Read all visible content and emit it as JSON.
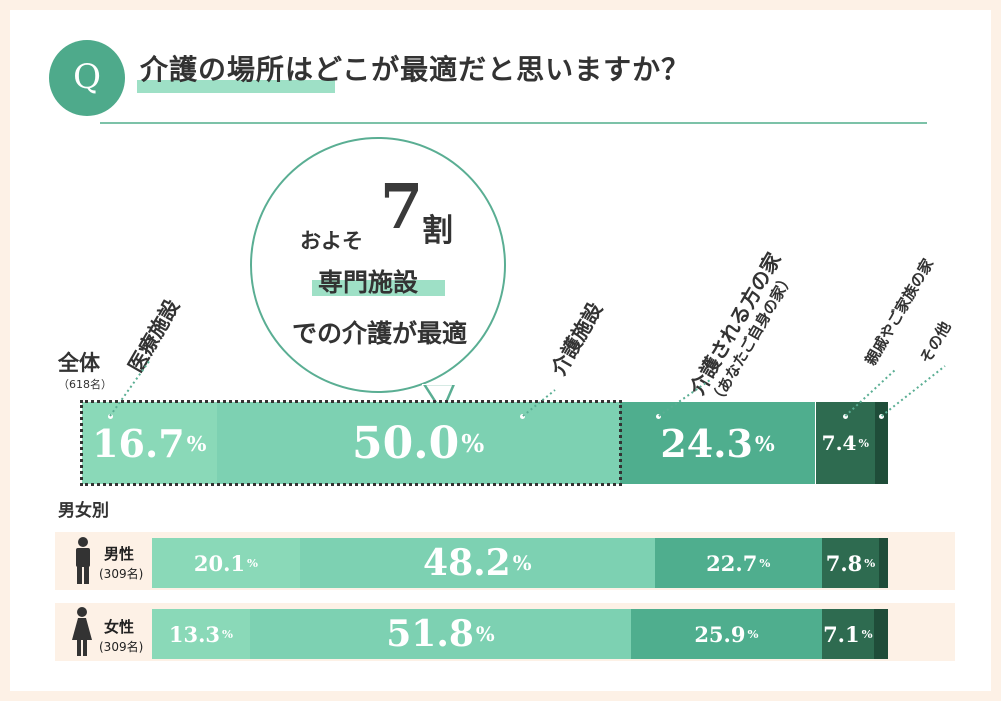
{
  "title": "介護の場所はどこが最適だと思いますか？",
  "q_badge": "Q",
  "bubble": {
    "approx": "およそ",
    "number": "7",
    "unit": "割",
    "line2": "専門施設",
    "line3": "での介護が最適"
  },
  "colors": [
    "#8ad9b8",
    "#7dd1b2",
    "#4fae8e",
    "#2e6b50",
    "#1f4d39"
  ],
  "chart_data": {
    "type": "bar",
    "orientation": "horizontal",
    "stacked": true,
    "normalized": true,
    "categories": [
      "医療施設",
      "介護施設",
      "介護される方の家（あなたご自身の家）",
      "親戚やご家族の家",
      "その他"
    ],
    "category_labels": [
      {
        "main": "医療施設",
        "sub": ""
      },
      {
        "main": "介護施設",
        "sub": ""
      },
      {
        "main": "介護される方の家",
        "sub": "（あなたご自身の家）"
      },
      {
        "main": "親戚やご家族の家",
        "sub": ""
      },
      {
        "main": "その他",
        "sub": ""
      }
    ],
    "unit": "%",
    "section_label": "男女別",
    "rows": [
      {
        "key": "all",
        "label": "全体",
        "n": "（618名）",
        "values": [
          16.7,
          50.0,
          24.3,
          7.4,
          1.6
        ],
        "shown": [
          "16.7",
          "50.0",
          "24.3",
          "7.4",
          ""
        ]
      },
      {
        "key": "male",
        "label": "男性",
        "n": "(309名)",
        "values": [
          20.1,
          48.2,
          22.7,
          7.8,
          1.2
        ],
        "shown": [
          "20.1",
          "48.2",
          "22.7",
          "7.8",
          ""
        ]
      },
      {
        "key": "female",
        "label": "女性",
        "n": "(309名)",
        "values": [
          13.3,
          51.8,
          25.9,
          7.1,
          1.9
        ],
        "shown": [
          "13.3",
          "51.8",
          "25.9",
          "7.1",
          ""
        ]
      }
    ]
  }
}
